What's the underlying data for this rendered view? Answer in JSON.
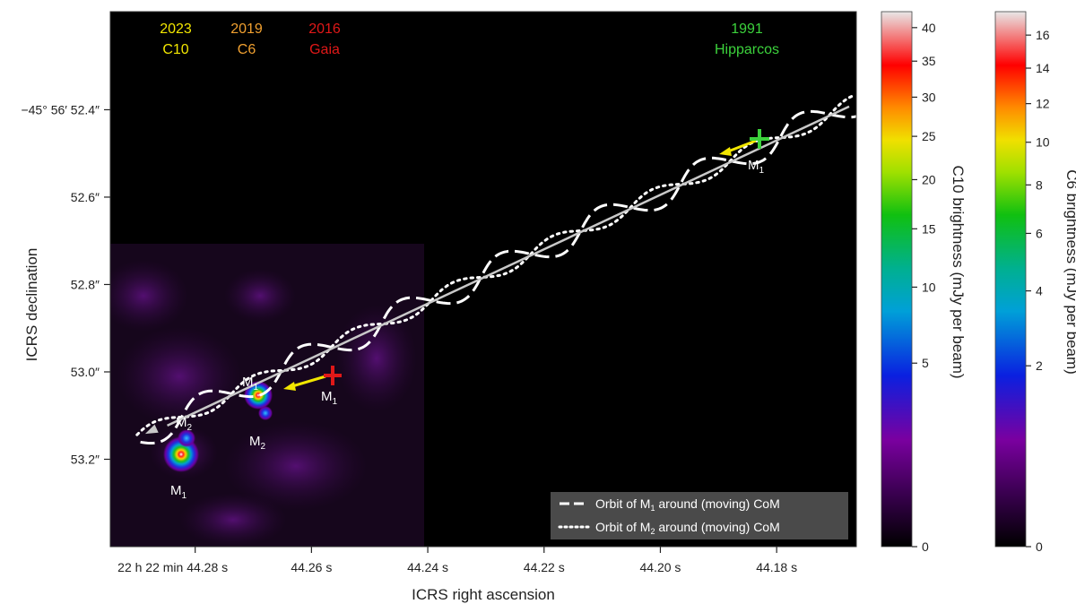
{
  "chart_data": {
    "type": "scatter",
    "title": "",
    "xlabel": "ICRS right ascension",
    "ylabel": "ICRS declination",
    "x_tick_labels": [
      "22 h 22 min 44.28 s",
      "44.26 s",
      "44.24 s",
      "44.22 s",
      "44.20 s",
      "44.18 s"
    ],
    "x_tick_values": [
      44.28,
      44.26,
      44.24,
      44.22,
      44.2,
      44.18
    ],
    "y_tick_labels": [
      "−45° 56′ 52.4″",
      "52.6″",
      "52.8″",
      "53.0″",
      "53.2″"
    ],
    "y_tick_values": [
      52.4,
      52.6,
      52.8,
      53.0,
      53.2
    ],
    "xlim": [
      44.2946,
      44.1663
    ],
    "ylim": [
      52.1755,
      53.4
    ],
    "epochs": [
      {
        "year": "2023",
        "name": "C10",
        "color": "#f2e600"
      },
      {
        "year": "2019",
        "name": "C6",
        "color": "#f0a030"
      },
      {
        "year": "2016",
        "name": "Gaia",
        "color": "#e01818"
      },
      {
        "year": "1991",
        "name": "Hipparcos",
        "color": "#3cd23c"
      }
    ],
    "markers": [
      {
        "label": "M",
        "sub": "1",
        "ra": 44.2817,
        "dec": 53.1185,
        "epoch": "C10"
      },
      {
        "label": "M",
        "sub": "2",
        "ra": 44.28,
        "dec": 53.0817,
        "epoch": "C10"
      },
      {
        "label": "M",
        "sub": "1",
        "ra": 44.2704,
        "dec": 53.0016,
        "epoch": "C6"
      },
      {
        "label": "M",
        "sub": "2",
        "ra": 44.2693,
        "dec": 53.0351,
        "epoch": "C6"
      },
      {
        "label": "M",
        "sub": "1",
        "ra": 44.2565,
        "dec": 52.9648,
        "epoch": "Gaia"
      },
      {
        "label": "M",
        "sub": "1",
        "ra": 44.1815,
        "dec": 52.4967,
        "epoch": "Hipparcos"
      }
    ],
    "series": [
      {
        "name": "Orbit of M1 around (moving) CoM",
        "style": "dashed"
      },
      {
        "name": "Orbit of M2 around (moving) CoM",
        "style": "dotted"
      }
    ],
    "com_path": {
      "ra": [
        44.2898,
        44.1663
      ],
      "dec": [
        53.1498,
        52.3824
      ]
    },
    "orbit_amplitude_pixels_note": "",
    "legend_position": "bottom-right",
    "colorbars": [
      {
        "label": "C10 brightness (mJy per beam)",
        "ticks": [
          0,
          5,
          10,
          15,
          20,
          25,
          30,
          35,
          40
        ],
        "range": [
          0,
          42.5
        ],
        "scale": "sqrt"
      },
      {
        "label": "C6 brightness (mJy per beam)",
        "ticks": [
          0,
          2,
          4,
          6,
          8,
          10,
          12,
          14,
          16
        ],
        "range": [
          0,
          17.5
        ],
        "scale": "sqrt"
      }
    ]
  },
  "colors": {
    "plot_background": "#000000",
    "orbit_line": "#ffffff",
    "com_line": "#bfbfbf",
    "legend_background": "#4a4a4a",
    "inset_background": "#1a0820"
  }
}
